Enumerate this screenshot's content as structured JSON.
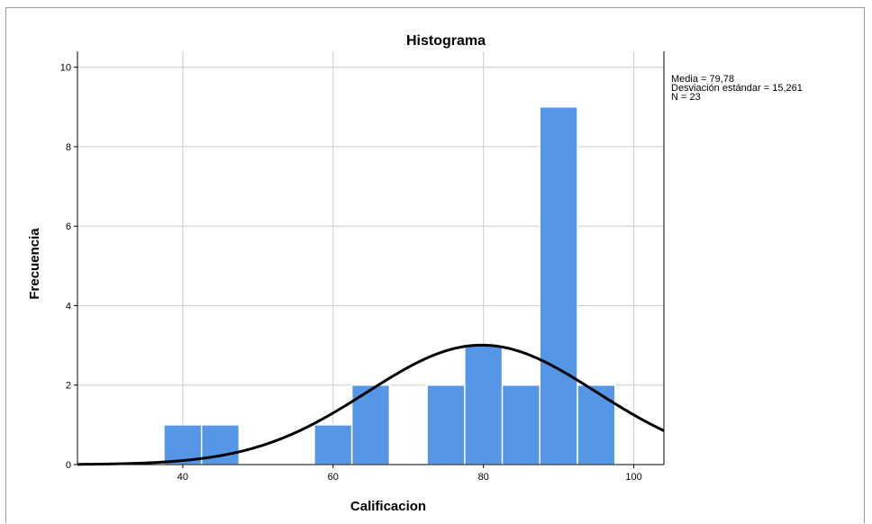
{
  "chart_data": {
    "type": "bar",
    "title": "Histograma",
    "xlabel": "Calificacion",
    "ylabel": "Frecuencia",
    "bin_width": 5,
    "bins": [
      {
        "start": 37.5,
        "end": 42.5,
        "count": 1
      },
      {
        "start": 42.5,
        "end": 47.5,
        "count": 1
      },
      {
        "start": 57.5,
        "end": 62.5,
        "count": 1
      },
      {
        "start": 62.5,
        "end": 67.5,
        "count": 2
      },
      {
        "start": 72.5,
        "end": 77.5,
        "count": 2
      },
      {
        "start": 77.5,
        "end": 82.5,
        "count": 3
      },
      {
        "start": 82.5,
        "end": 87.5,
        "count": 2
      },
      {
        "start": 87.5,
        "end": 92.5,
        "count": 9
      },
      {
        "start": 92.5,
        "end": 97.5,
        "count": 2
      }
    ],
    "xlim": [
      26,
      104
    ],
    "ylim": [
      0,
      10.4
    ],
    "xticks": [
      40,
      60,
      80,
      100
    ],
    "yticks": [
      0,
      2,
      4,
      6,
      8,
      10
    ],
    "grid": true,
    "bar_color": "#5596e6",
    "normal_curve": {
      "mean": 79.78,
      "sd": 15.261,
      "n": 23,
      "color": "#000000"
    },
    "stats_box": {
      "placement": "top-right",
      "lines": [
        "Media = 79,78",
        "Desviación estándar = 15,261",
        "N = 23"
      ]
    }
  }
}
